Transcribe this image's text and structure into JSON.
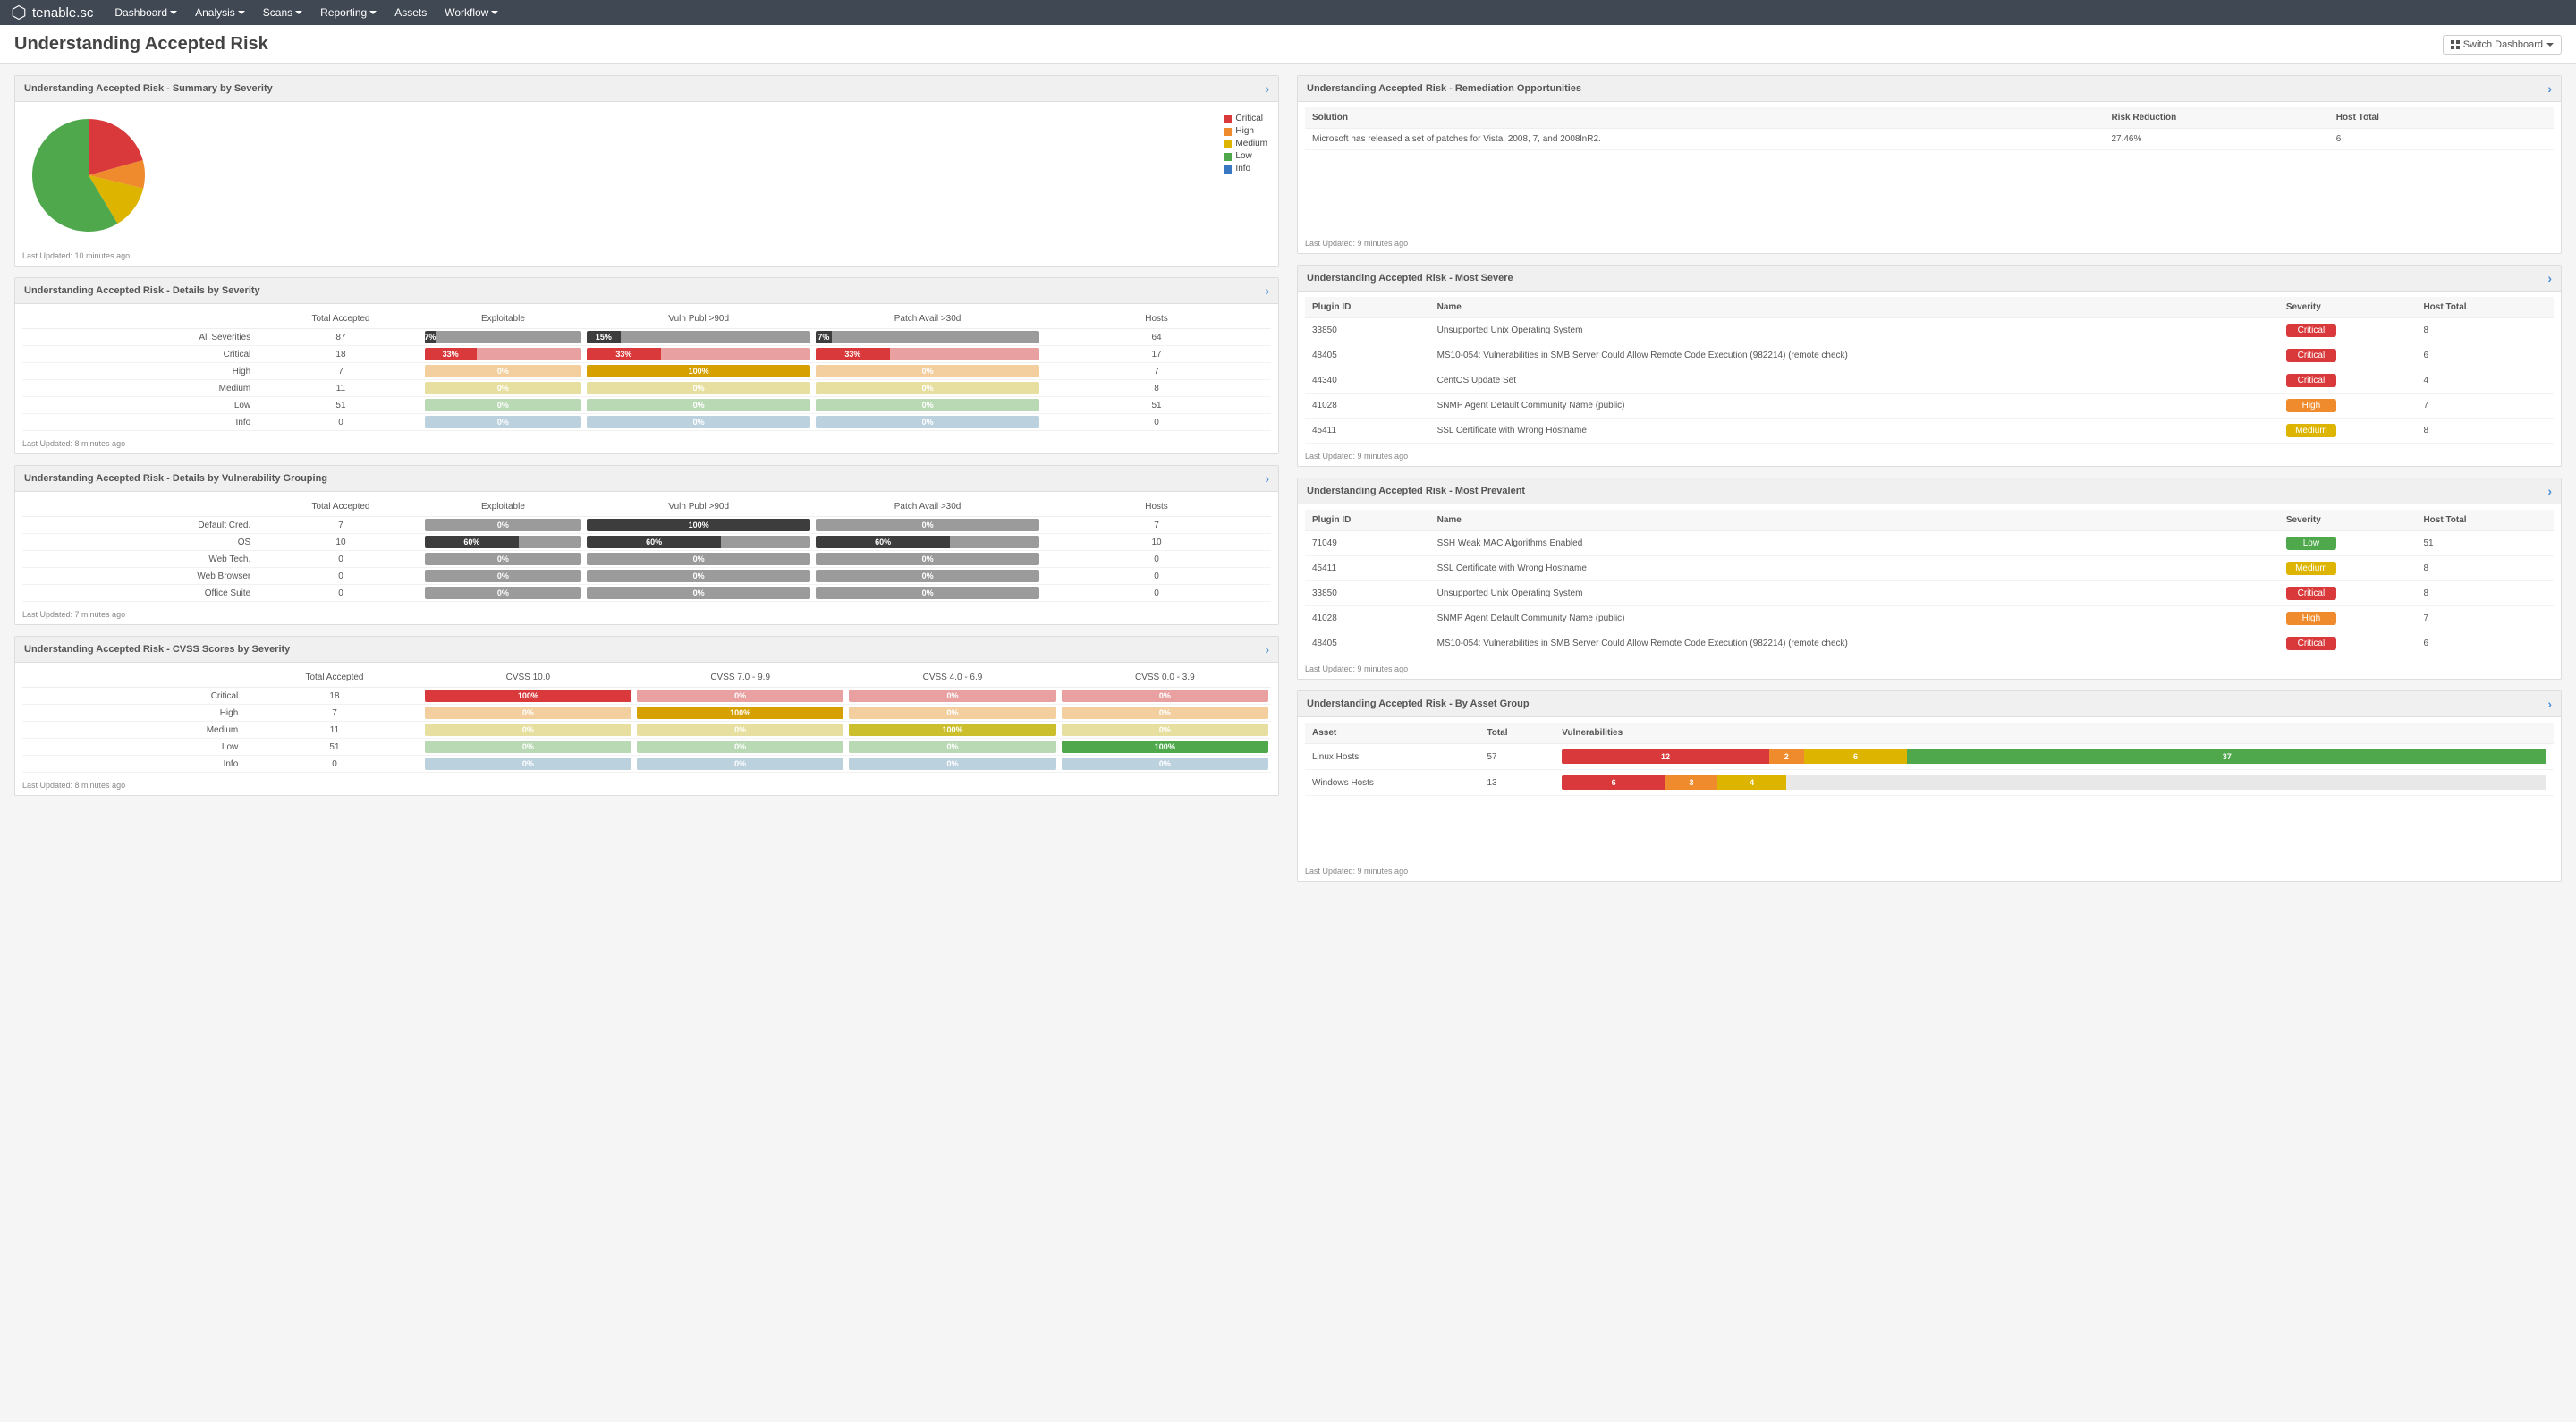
{
  "brand": "tenable.sc",
  "nav": [
    "Dashboard",
    "Analysis",
    "Scans",
    "Reporting",
    "Assets",
    "Workflow"
  ],
  "nav_has_caret": [
    true,
    true,
    true,
    true,
    false,
    true
  ],
  "page_title": "Understanding Accepted Risk",
  "switch_label": "Switch Dashboard",
  "colors": {
    "critical": "#d9393a",
    "high": "#ef8b2c",
    "medium": "#ddb500",
    "low": "#4fa94c",
    "info": "#3a77c2",
    "grey": "#9b9b9b",
    "grey_dark": "#3d3d3d",
    "crit_soft": "#e9a0a0",
    "high_soft": "#f3cfa0",
    "med_soft": "#e6dfa0",
    "low_soft": "#b9d9b4",
    "info_soft": "#bcd1de"
  },
  "pie": {
    "title": "Understanding Accepted Risk - Summary by Severity",
    "updated": "Last Updated: 10 minutes ago",
    "slices": [
      {
        "label": "Critical",
        "value": 18,
        "color": "#d9393a"
      },
      {
        "label": "High",
        "value": 7,
        "color": "#ef8b2c"
      },
      {
        "label": "Medium",
        "value": 11,
        "color": "#ddb500"
      },
      {
        "label": "Low",
        "value": 51,
        "color": "#4fa94c"
      },
      {
        "label": "Info",
        "value": 0,
        "color": "#3a77c2"
      }
    ]
  },
  "severity_matrix": {
    "title": "Understanding Accepted Risk - Details by Severity",
    "updated": "Last Updated: 8 minutes ago",
    "cols": [
      "",
      "Total Accepted",
      "Exploitable",
      "Vuln Publ >90d",
      "Patch Avail >30d",
      "Hosts"
    ],
    "rows": [
      {
        "label": "All Severities",
        "total": "87",
        "bars": [
          {
            "segs": [
              {
                "w": 7,
                "c": "#3d3d3d",
                "t": "7%"
              },
              {
                "w": 93,
                "c": "#9b9b9b",
                "t": ""
              }
            ]
          },
          {
            "segs": [
              {
                "w": 15,
                "c": "#3d3d3d",
                "t": "15%"
              },
              {
                "w": 85,
                "c": "#9b9b9b",
                "t": ""
              }
            ]
          },
          {
            "segs": [
              {
                "w": 7,
                "c": "#3d3d3d",
                "t": "7%"
              },
              {
                "w": 93,
                "c": "#9b9b9b",
                "t": ""
              }
            ]
          }
        ],
        "hosts": "64"
      },
      {
        "label": "Critical",
        "total": "18",
        "bars": [
          {
            "segs": [
              {
                "w": 33,
                "c": "#d9393a",
                "t": "33%"
              },
              {
                "w": 67,
                "c": "#e9a0a0",
                "t": ""
              }
            ]
          },
          {
            "segs": [
              {
                "w": 33,
                "c": "#d9393a",
                "t": "33%"
              },
              {
                "w": 67,
                "c": "#e9a0a0",
                "t": ""
              }
            ]
          },
          {
            "segs": [
              {
                "w": 33,
                "c": "#d9393a",
                "t": "33%"
              },
              {
                "w": 67,
                "c": "#e9a0a0",
                "t": ""
              }
            ]
          }
        ],
        "hosts": "17"
      },
      {
        "label": "High",
        "total": "7",
        "bars": [
          {
            "segs": [
              {
                "w": 100,
                "c": "#f3cfa0",
                "t": "0%"
              }
            ]
          },
          {
            "segs": [
              {
                "w": 100,
                "c": "#d6a000",
                "t": "100%"
              }
            ]
          },
          {
            "segs": [
              {
                "w": 100,
                "c": "#f3cfa0",
                "t": "0%"
              }
            ]
          }
        ],
        "hosts": "7"
      },
      {
        "label": "Medium",
        "total": "11",
        "bars": [
          {
            "segs": [
              {
                "w": 100,
                "c": "#e6dfa0",
                "t": "0%"
              }
            ]
          },
          {
            "segs": [
              {
                "w": 100,
                "c": "#e6dfa0",
                "t": "0%"
              }
            ]
          },
          {
            "segs": [
              {
                "w": 100,
                "c": "#e6dfa0",
                "t": "0%"
              }
            ]
          }
        ],
        "hosts": "8"
      },
      {
        "label": "Low",
        "total": "51",
        "bars": [
          {
            "segs": [
              {
                "w": 100,
                "c": "#b9d9b4",
                "t": "0%"
              }
            ]
          },
          {
            "segs": [
              {
                "w": 100,
                "c": "#b9d9b4",
                "t": "0%"
              }
            ]
          },
          {
            "segs": [
              {
                "w": 100,
                "c": "#b9d9b4",
                "t": "0%"
              }
            ]
          }
        ],
        "hosts": "51"
      },
      {
        "label": "Info",
        "total": "0",
        "bars": [
          {
            "segs": [
              {
                "w": 100,
                "c": "#bcd1de",
                "t": "0%"
              }
            ]
          },
          {
            "segs": [
              {
                "w": 100,
                "c": "#bcd1de",
                "t": "0%"
              }
            ]
          },
          {
            "segs": [
              {
                "w": 100,
                "c": "#bcd1de",
                "t": "0%"
              }
            ]
          }
        ],
        "hosts": "0"
      }
    ]
  },
  "vuln_group_matrix": {
    "title": "Understanding Accepted Risk - Details by Vulnerability Grouping",
    "updated": "Last Updated: 7 minutes ago",
    "cols": [
      "",
      "Total Accepted",
      "Exploitable",
      "Vuln Publ >90d",
      "Patch Avail >30d",
      "Hosts"
    ],
    "rows": [
      {
        "label": "Default Cred.",
        "total": "7",
        "bars": [
          {
            "segs": [
              {
                "w": 100,
                "c": "#9b9b9b",
                "t": "0%"
              }
            ]
          },
          {
            "segs": [
              {
                "w": 100,
                "c": "#3d3d3d",
                "t": "100%"
              }
            ]
          },
          {
            "segs": [
              {
                "w": 100,
                "c": "#9b9b9b",
                "t": "0%"
              }
            ]
          }
        ],
        "hosts": "7"
      },
      {
        "label": "OS",
        "total": "10",
        "bars": [
          {
            "segs": [
              {
                "w": 60,
                "c": "#3d3d3d",
                "t": "60%"
              },
              {
                "w": 40,
                "c": "#9b9b9b",
                "t": ""
              }
            ]
          },
          {
            "segs": [
              {
                "w": 60,
                "c": "#3d3d3d",
                "t": "60%"
              },
              {
                "w": 40,
                "c": "#9b9b9b",
                "t": ""
              }
            ]
          },
          {
            "segs": [
              {
                "w": 60,
                "c": "#3d3d3d",
                "t": "60%"
              },
              {
                "w": 40,
                "c": "#9b9b9b",
                "t": ""
              }
            ]
          }
        ],
        "hosts": "10"
      },
      {
        "label": "Web Tech.",
        "total": "0",
        "bars": [
          {
            "segs": [
              {
                "w": 100,
                "c": "#9b9b9b",
                "t": "0%"
              }
            ]
          },
          {
            "segs": [
              {
                "w": 100,
                "c": "#9b9b9b",
                "t": "0%"
              }
            ]
          },
          {
            "segs": [
              {
                "w": 100,
                "c": "#9b9b9b",
                "t": "0%"
              }
            ]
          }
        ],
        "hosts": "0"
      },
      {
        "label": "Web Browser",
        "total": "0",
        "bars": [
          {
            "segs": [
              {
                "w": 100,
                "c": "#9b9b9b",
                "t": "0%"
              }
            ]
          },
          {
            "segs": [
              {
                "w": 100,
                "c": "#9b9b9b",
                "t": "0%"
              }
            ]
          },
          {
            "segs": [
              {
                "w": 100,
                "c": "#9b9b9b",
                "t": "0%"
              }
            ]
          }
        ],
        "hosts": "0"
      },
      {
        "label": "Office Suite",
        "total": "0",
        "bars": [
          {
            "segs": [
              {
                "w": 100,
                "c": "#9b9b9b",
                "t": "0%"
              }
            ]
          },
          {
            "segs": [
              {
                "w": 100,
                "c": "#9b9b9b",
                "t": "0%"
              }
            ]
          },
          {
            "segs": [
              {
                "w": 100,
                "c": "#9b9b9b",
                "t": "0%"
              }
            ]
          }
        ],
        "hosts": "0"
      }
    ]
  },
  "cvss_matrix": {
    "title": "Understanding Accepted Risk - CVSS Scores by Severity",
    "updated": "Last Updated: 8 minutes ago",
    "cols": [
      "",
      "Total Accepted",
      "CVSS 10.0",
      "CVSS 7.0 - 9.9",
      "CVSS 4.0 - 6.9",
      "CVSS 0.0 - 3.9"
    ],
    "rows": [
      {
        "label": "Critical",
        "total": "18",
        "bars": [
          {
            "segs": [
              {
                "w": 100,
                "c": "#d9393a",
                "t": "100%"
              }
            ]
          },
          {
            "segs": [
              {
                "w": 100,
                "c": "#e9a0a0",
                "t": "0%"
              }
            ]
          },
          {
            "segs": [
              {
                "w": 100,
                "c": "#e9a0a0",
                "t": "0%"
              }
            ]
          },
          {
            "segs": [
              {
                "w": 100,
                "c": "#e9a0a0",
                "t": "0%"
              }
            ]
          }
        ]
      },
      {
        "label": "High",
        "total": "7",
        "bars": [
          {
            "segs": [
              {
                "w": 100,
                "c": "#f3cfa0",
                "t": "0%"
              }
            ]
          },
          {
            "segs": [
              {
                "w": 100,
                "c": "#d6a000",
                "t": "100%"
              }
            ]
          },
          {
            "segs": [
              {
                "w": 100,
                "c": "#f3cfa0",
                "t": "0%"
              }
            ]
          },
          {
            "segs": [
              {
                "w": 100,
                "c": "#f3cfa0",
                "t": "0%"
              }
            ]
          }
        ]
      },
      {
        "label": "Medium",
        "total": "11",
        "bars": [
          {
            "segs": [
              {
                "w": 100,
                "c": "#e6dfa0",
                "t": "0%"
              }
            ]
          },
          {
            "segs": [
              {
                "w": 100,
                "c": "#e6dfa0",
                "t": "0%"
              }
            ]
          },
          {
            "segs": [
              {
                "w": 100,
                "c": "#cbbf2e",
                "t": "100%"
              }
            ]
          },
          {
            "segs": [
              {
                "w": 100,
                "c": "#e6dfa0",
                "t": "0%"
              }
            ]
          }
        ]
      },
      {
        "label": "Low",
        "total": "51",
        "bars": [
          {
            "segs": [
              {
                "w": 100,
                "c": "#b9d9b4",
                "t": "0%"
              }
            ]
          },
          {
            "segs": [
              {
                "w": 100,
                "c": "#b9d9b4",
                "t": "0%"
              }
            ]
          },
          {
            "segs": [
              {
                "w": 100,
                "c": "#b9d9b4",
                "t": "0%"
              }
            ]
          },
          {
            "segs": [
              {
                "w": 100,
                "c": "#4fa94c",
                "t": "100%"
              }
            ]
          }
        ]
      },
      {
        "label": "Info",
        "total": "0",
        "bars": [
          {
            "segs": [
              {
                "w": 100,
                "c": "#bcd1de",
                "t": "0%"
              }
            ]
          },
          {
            "segs": [
              {
                "w": 100,
                "c": "#bcd1de",
                "t": "0%"
              }
            ]
          },
          {
            "segs": [
              {
                "w": 100,
                "c": "#bcd1de",
                "t": "0%"
              }
            ]
          },
          {
            "segs": [
              {
                "w": 100,
                "c": "#bcd1de",
                "t": "0%"
              }
            ]
          }
        ]
      }
    ]
  },
  "remediation": {
    "title": "Understanding Accepted Risk - Remediation Opportunities",
    "updated": "Last Updated: 9 minutes ago",
    "cols": [
      "Solution",
      "Risk Reduction",
      "Host Total"
    ],
    "rows": [
      {
        "solution": "Microsoft has released a set of patches for Vista, 2008, 7, and 2008lnR2.",
        "risk": "27.46%",
        "hosts": "6"
      }
    ]
  },
  "most_severe": {
    "title": "Understanding Accepted Risk - Most Severe",
    "updated": "Last Updated: 9 minutes ago",
    "cols": [
      "Plugin ID",
      "Name",
      "Severity",
      "Host Total"
    ],
    "rows": [
      {
        "id": "33850",
        "name": "Unsupported Unix Operating System",
        "sev": "Critical",
        "sev_color": "#d9393a",
        "hosts": "8"
      },
      {
        "id": "48405",
        "name": "MS10-054: Vulnerabilities in SMB Server Could Allow Remote Code Execution (982214) (remote check)",
        "sev": "Critical",
        "sev_color": "#d9393a",
        "hosts": "6"
      },
      {
        "id": "44340",
        "name": "CentOS Update Set",
        "sev": "Critical",
        "sev_color": "#d9393a",
        "hosts": "4"
      },
      {
        "id": "41028",
        "name": "SNMP Agent Default Community Name (public)",
        "sev": "High",
        "sev_color": "#ef8b2c",
        "hosts": "7"
      },
      {
        "id": "45411",
        "name": "SSL Certificate with Wrong Hostname",
        "sev": "Medium",
        "sev_color": "#ddb500",
        "hosts": "8"
      }
    ]
  },
  "most_prevalent": {
    "title": "Understanding Accepted Risk - Most Prevalent",
    "updated": "Last Updated: 9 minutes ago",
    "cols": [
      "Plugin ID",
      "Name",
      "Severity",
      "Host Total"
    ],
    "rows": [
      {
        "id": "71049",
        "name": "SSH Weak MAC Algorithms Enabled",
        "sev": "Low",
        "sev_color": "#4fa94c",
        "hosts": "51"
      },
      {
        "id": "45411",
        "name": "SSL Certificate with Wrong Hostname",
        "sev": "Medium",
        "sev_color": "#ddb500",
        "hosts": "8"
      },
      {
        "id": "33850",
        "name": "Unsupported Unix Operating System",
        "sev": "Critical",
        "sev_color": "#d9393a",
        "hosts": "8"
      },
      {
        "id": "41028",
        "name": "SNMP Agent Default Community Name (public)",
        "sev": "High",
        "sev_color": "#ef8b2c",
        "hosts": "7"
      },
      {
        "id": "48405",
        "name": "MS10-054: Vulnerabilities in SMB Server Could Allow Remote Code Execution (982214) (remote check)",
        "sev": "Critical",
        "sev_color": "#d9393a",
        "hosts": "6"
      }
    ]
  },
  "asset_group": {
    "title": "Understanding Accepted Risk - By Asset Group",
    "updated": "Last Updated: 9 minutes ago",
    "cols": [
      "Asset",
      "Total",
      "Vulnerabilities"
    ],
    "rows": [
      {
        "asset": "Linux Hosts",
        "total": "57",
        "segs": [
          {
            "v": 12,
            "c": "#d9393a"
          },
          {
            "v": 2,
            "c": "#ef8b2c"
          },
          {
            "v": 6,
            "c": "#ddb500"
          },
          {
            "v": 37,
            "c": "#4fa94c"
          }
        ],
        "sum": 57
      },
      {
        "asset": "Windows Hosts",
        "total": "13",
        "segs": [
          {
            "v": 6,
            "c": "#d9393a"
          },
          {
            "v": 3,
            "c": "#ef8b2c"
          },
          {
            "v": 4,
            "c": "#ddb500"
          }
        ],
        "sum": 57
      }
    ]
  }
}
